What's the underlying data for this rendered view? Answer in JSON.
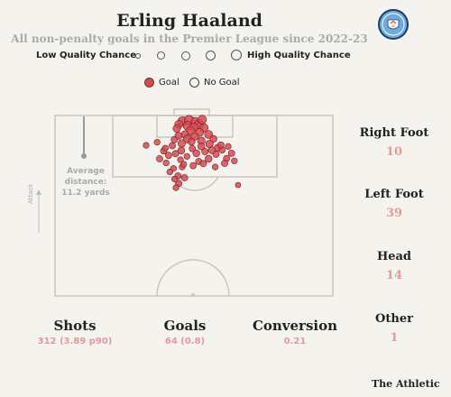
{
  "header": {
    "title": "Erling Haaland",
    "subtitle": "All non-penalty goals in the Premier League since 2022-23",
    "badge": "manchester-city-badge"
  },
  "scale": {
    "low_label": "Low Quality Chance",
    "high_label": "High Quality Chance"
  },
  "legend": {
    "goal_label": "Goal",
    "no_goal_label": "No Goal",
    "goal_color": "#e0454f"
  },
  "pitch": {
    "average_distance_label": "Average distance:",
    "average_distance_value": "11.2 yards",
    "attack_label": "Attack"
  },
  "breakdown": [
    {
      "label": "Right Foot",
      "value": "10"
    },
    {
      "label": "Left Foot",
      "value": "39"
    },
    {
      "label": "Head",
      "value": "14"
    },
    {
      "label": "Other",
      "value": "1"
    }
  ],
  "stats": [
    {
      "label": "Shots",
      "value": "312 (3.89 p90)"
    },
    {
      "label": "Goals",
      "value": "64 (0.8)"
    },
    {
      "label": "Conversion",
      "value": "0.21"
    }
  ],
  "brand": "The Athletic",
  "chart_data": {
    "type": "scatter",
    "x_unit": "yards from left touchline",
    "y_unit": "yards from goal line",
    "pitch_width_yards": 68,
    "half_length_yards": 52.5,
    "average_distance_yards": 11.2,
    "series": [
      {
        "name": "Goal",
        "points": [
          [
            31.2,
            1.7,
            0.55
          ],
          [
            32.8,
            1.4,
            0.6
          ],
          [
            34.3,
            1.8,
            0.5
          ],
          [
            35.3,
            2.5,
            0.55
          ],
          [
            30.3,
            2.6,
            0.45
          ],
          [
            32.4,
            3.0,
            0.5
          ],
          [
            34.0,
            3.4,
            0.45
          ],
          [
            36.4,
            3.6,
            0.5
          ],
          [
            29.8,
            3.8,
            0.4
          ],
          [
            33.2,
            4.4,
            0.5
          ],
          [
            35.4,
            4.9,
            0.45
          ],
          [
            31.8,
            5.5,
            0.4
          ],
          [
            37.6,
            5.5,
            0.45
          ],
          [
            30.2,
            5.9,
            0.35
          ],
          [
            34.2,
            6.1,
            0.4
          ],
          [
            38.8,
            6.8,
            0.35
          ],
          [
            32.4,
            6.8,
            0.45
          ],
          [
            29.2,
            7.0,
            0.3
          ],
          [
            35.8,
            7.4,
            0.4
          ],
          [
            33.4,
            7.6,
            0.35
          ],
          [
            31.0,
            8.1,
            0.4
          ],
          [
            37.8,
            8.3,
            0.4
          ],
          [
            28.7,
            8.8,
            0.3
          ],
          [
            35.8,
            9.0,
            0.35
          ],
          [
            39.8,
            9.4,
            0.35
          ],
          [
            33.6,
            9.6,
            0.3
          ],
          [
            22.3,
            8.7,
            0.25
          ],
          [
            30.9,
            10.2,
            0.35
          ],
          [
            38.4,
            10.1,
            0.35
          ],
          [
            26.6,
            10.3,
            0.3
          ],
          [
            36.7,
            10.5,
            0.3
          ],
          [
            42.4,
            9.0,
            0.25
          ],
          [
            40.9,
            10.0,
            0.3
          ],
          [
            34.6,
            11.0,
            0.35
          ],
          [
            29.5,
            11.1,
            0.3
          ],
          [
            32.3,
            11.9,
            0.25
          ],
          [
            39.4,
            11.3,
            0.3
          ],
          [
            27.8,
            11.6,
            0.3
          ],
          [
            43.2,
            11.0,
            0.3
          ],
          [
            37.6,
            12.6,
            0.35
          ],
          [
            42.0,
            12.5,
            0.3
          ],
          [
            25.6,
            12.6,
            0.3
          ],
          [
            30.7,
            12.9,
            0.25
          ],
          [
            35.2,
            13.4,
            0.3
          ],
          [
            41.5,
            13.9,
            0.3
          ],
          [
            27.2,
            13.8,
            0.25
          ],
          [
            33.8,
            14.6,
            0.3
          ],
          [
            31.1,
            15.0,
            0.25
          ],
          [
            39.2,
            15.0,
            0.25
          ],
          [
            29.0,
            15.4,
            0.25
          ],
          [
            28.1,
            16.4,
            0.25
          ],
          [
            30.1,
            17.6,
            0.3
          ],
          [
            31.7,
            18.1,
            0.3
          ],
          [
            29.3,
            18.5,
            0.25
          ],
          [
            30.3,
            19.8,
            0.3
          ],
          [
            44.8,
            20.2,
            0.2
          ],
          [
            29.6,
            21.0,
            0.25
          ],
          [
            36.3,
            14.0,
            0.3
          ],
          [
            31.5,
            14.2,
            0.25
          ],
          [
            25.0,
            7.8,
            0.25
          ],
          [
            40.6,
            8.6,
            0.3
          ],
          [
            27.0,
            9.5,
            0.25
          ],
          [
            43.9,
            13.2,
            0.25
          ],
          [
            36.0,
            1.2,
            0.5
          ]
        ]
      }
    ]
  }
}
